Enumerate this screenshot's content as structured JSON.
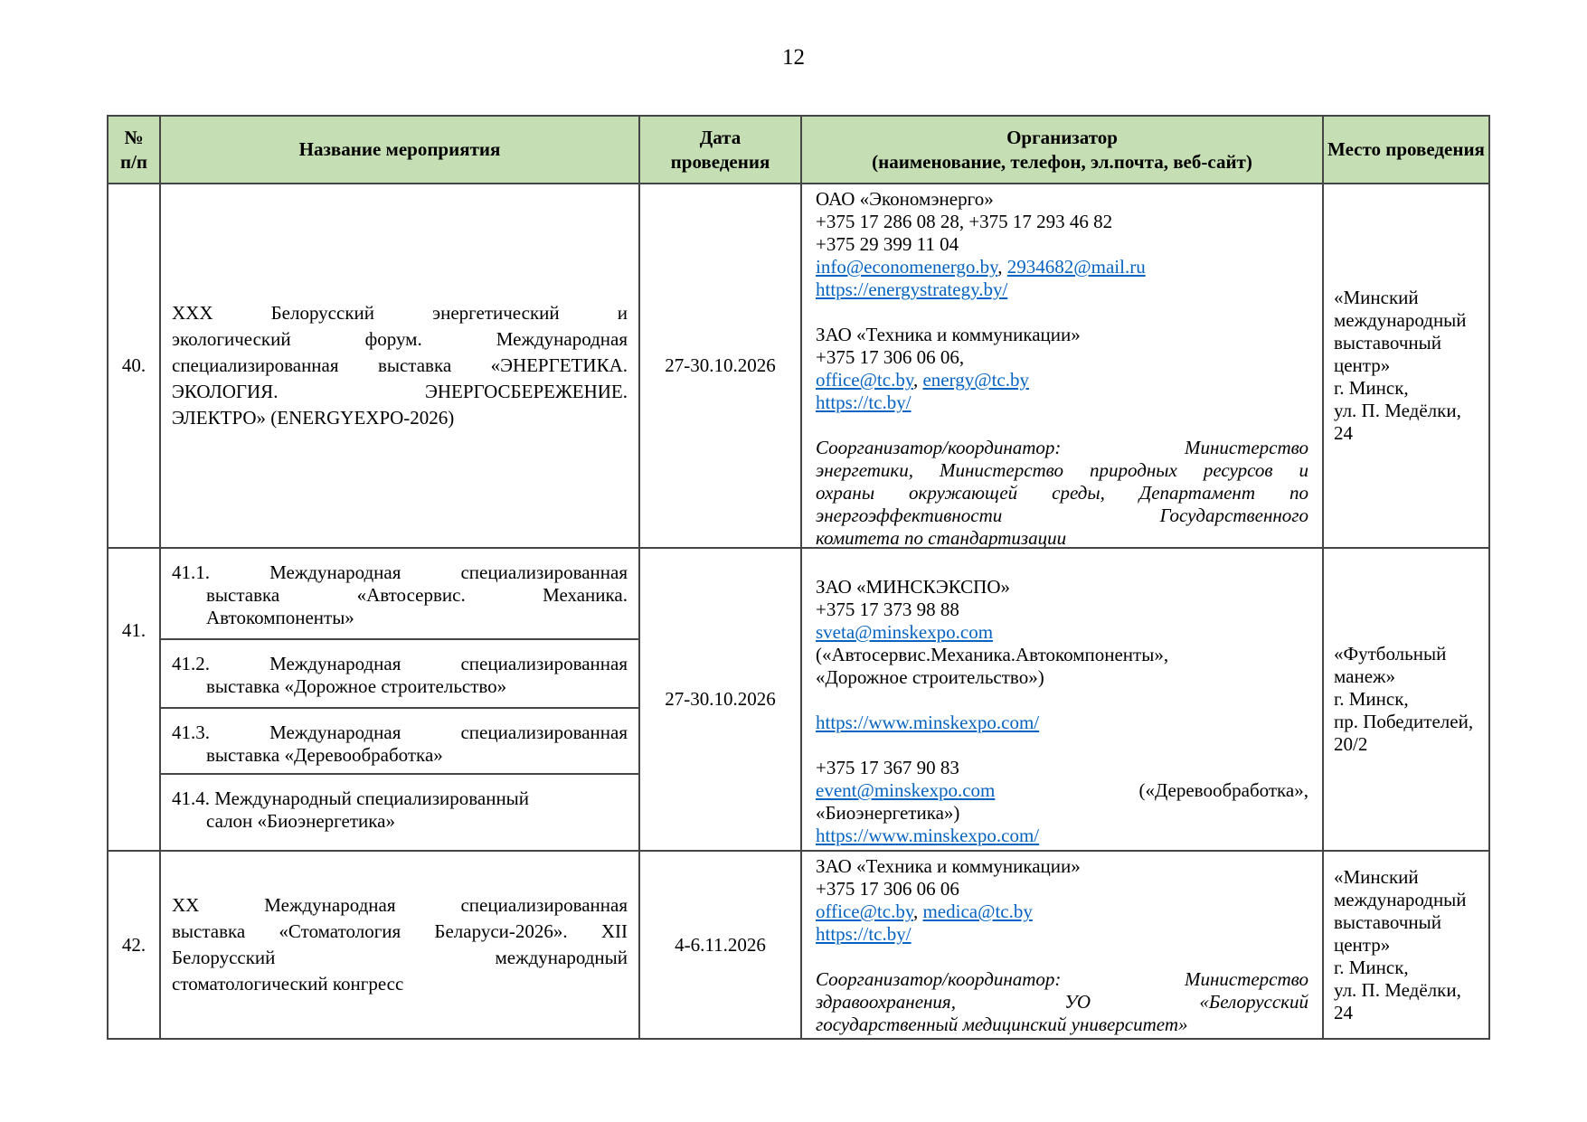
{
  "page": {
    "number": "12"
  },
  "colors": {
    "header_bg": "#c5deb3",
    "border": "#454545",
    "link": "#0563c1"
  },
  "table": {
    "header": {
      "num": [
        "№",
        "п/п"
      ],
      "name": "Название мероприятия",
      "date": [
        "Дата",
        "проведения"
      ],
      "organizer": [
        "Организатор",
        "(наименование, телефон, эл.почта, веб-сайт)"
      ],
      "place": "Место проведения"
    },
    "row40": {
      "num": "40.",
      "name_lines": [
        "ХХХ Белорусский энергетический и",
        "экологический форум. Международная",
        "специализированная выставка «ЭНЕРГЕТИКА.",
        "ЭКОЛОГИЯ. ЭНЕРГОСБЕРЕЖЕНИЕ.",
        "ЭЛЕКТРО» (ENERGYEXPO-2026)"
      ],
      "date": "27-30.10.2026",
      "org": {
        "company1": "ОАО «Экономэнерго»",
        "phones1a": "+375 17 286 08 28, +375 17 293 46 82",
        "phones1b": "+375 29 399 11 04",
        "email1a": "info@economenergo.by",
        "email_sep": ", ",
        "email1b": "2934682@mail.ru",
        "site1": "https://energystrategy.by/",
        "company2": "ЗАО «Техника и коммуникации»",
        "phones2": "+375 17 306 06 06,",
        "email2a": "office@tc.by",
        "email2b": "energy@tc.by",
        "site2": "https://tc.by/",
        "coord_lines": [
          "Соорганизатор/координатор: Министерство",
          "энергетики, Министерство природных ресурсов и",
          "охраны окружающей среды, Департамент по",
          "энергоэффективности Государственного",
          "комитета по стандартизации"
        ]
      },
      "place_lines": [
        "«Минский",
        "международный",
        "выставочный центр»",
        "г. Минск,",
        "ул. П. Медёлки, 24"
      ]
    },
    "row41": {
      "num": "41.",
      "items": [
        {
          "lines": [
            "41.1. Международная специализированная",
            "выставка «Автосервис. Механика.",
            "Автокомпоненты»"
          ]
        },
        {
          "lines": [
            "41.2. Международная специализированная",
            "выставка «Дорожное строительство»"
          ]
        },
        {
          "lines": [
            "41.3. Международная специализированная",
            "выставка «Деревообработка»"
          ]
        },
        {
          "lines": [
            "41.4. Международный специализированный",
            "салон «Биоэнергетика»"
          ]
        }
      ],
      "date": "27-30.10.2026",
      "org": {
        "company": "ЗАО «МИНСКЭКСПО»",
        "phone1": "+375 17 373 98 88",
        "email1": "sveta@minskexpo.com",
        "note1a": "(«Автосервис.Механика.Автокомпоненты»,",
        "note1b": "«Дорожное строительство»)",
        "site1": "https://www.minskexpo.com/",
        "phone2": "+375 17 367 90 83",
        "email2": "event@minskexpo.com",
        "note2a": "(«Деревообработка»,",
        "note2b": "«Биоэнергетика»)",
        "site2": "https://www.minskexpo.com/"
      },
      "place_lines": [
        "«Футбольный манеж»",
        "г. Минск,",
        "пр. Победителей, 20/2"
      ]
    },
    "row42": {
      "num": "42.",
      "name_lines": [
        "ХХ Международная специализированная",
        "выставка «Стоматология Беларуси-2026». XII",
        "Белорусский международный",
        "стоматологический конгресс"
      ],
      "date": "4-6.11.2026",
      "org": {
        "company": "ЗАО «Техника и коммуникации»",
        "phone": "+375 17 306 06 06",
        "email1": "office@tc.by",
        "email_sep": ", ",
        "email2": "medica@tc.by",
        "site": "https://tc.by/",
        "coord_lines": [
          "Соорганизатор/координатор: Министерство",
          "здравоохранения, УО «Белорусский",
          "государственный медицинский университет»"
        ]
      },
      "place_lines": [
        "«Минский",
        "международный",
        "выставочный центр»",
        "г. Минск,",
        "ул. П. Медёлки, 24"
      ]
    }
  }
}
